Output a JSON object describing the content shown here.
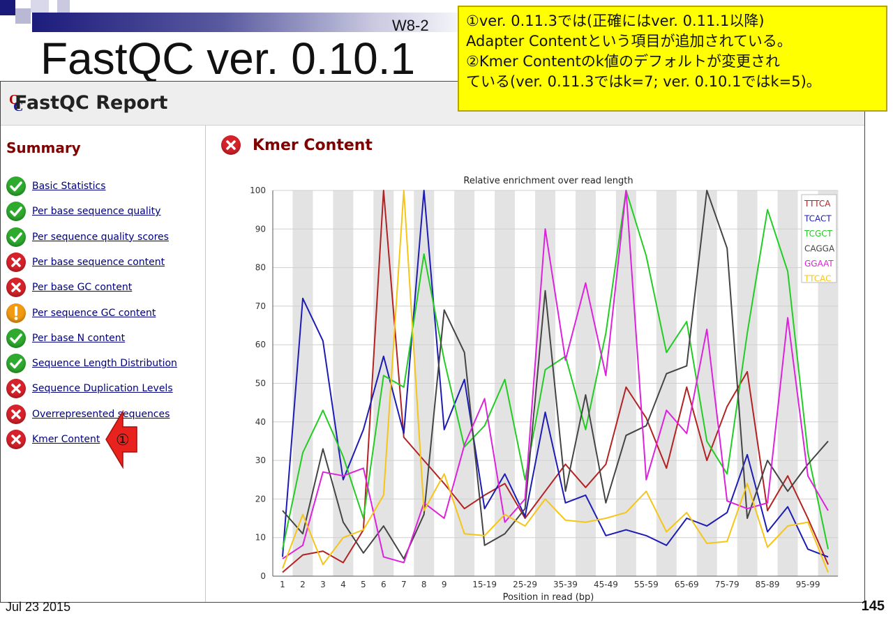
{
  "slide": {
    "title": "FastQC ver. 0.10.1",
    "tag": "W8-2",
    "date": "Jul 23 2015",
    "page_number": "145",
    "note_lines": [
      "①ver. 0.11.3では(正確にはver. 0.11.1以降)",
      "Adapter Contentという項目が追加されている。",
      "②Kmer Contentのk値のデフォルトが変更され",
      "ている(ver. 0.11.3ではk=7; ver. 0.10.1ではk=5)。"
    ],
    "arrow_label": "①",
    "colors": {
      "note_bg": "#ffff00",
      "arrow": "#e8231d"
    }
  },
  "report": {
    "title": "FastQC Report",
    "summary_heading": "Summary",
    "modules": [
      {
        "label": "Basic Statistics",
        "status": "pass"
      },
      {
        "label": "Per base sequence quality",
        "status": "pass"
      },
      {
        "label": "Per sequence quality scores",
        "status": "pass"
      },
      {
        "label": "Per base sequence content",
        "status": "fail"
      },
      {
        "label": "Per base GC content",
        "status": "fail"
      },
      {
        "label": "Per sequence GC content",
        "status": "warn"
      },
      {
        "label": "Per base N content",
        "status": "pass"
      },
      {
        "label": "Sequence Length Distribution",
        "status": "pass"
      },
      {
        "label": "Sequence Duplication Levels",
        "status": "fail"
      },
      {
        "label": "Overrepresented sequences",
        "status": "fail"
      },
      {
        "label": "Kmer Content",
        "status": "fail"
      }
    ],
    "main_heading": "Kmer Content",
    "status_colors": {
      "pass": "#2eaa2e",
      "fail": "#d6222a",
      "warn": "#f29a12"
    }
  },
  "chart_data": {
    "type": "line",
    "title": "Relative enrichment over read length",
    "xlabel": "Position in read (bp)",
    "ylabel": "",
    "ylim": [
      0,
      100
    ],
    "yticks": [
      0,
      10,
      20,
      30,
      40,
      50,
      60,
      70,
      80,
      90,
      100
    ],
    "grid": true,
    "legend_position": "top-right",
    "x": [
      "1",
      "2",
      "3",
      "4",
      "5",
      "6",
      "7",
      "8",
      "9",
      "10-14",
      "15-19",
      "20-24",
      "25-29",
      "30-34",
      "35-39",
      "40-44",
      "45-49",
      "50-54",
      "55-59",
      "60-64",
      "65-69",
      "70-74",
      "75-79",
      "80-84",
      "85-89",
      "90-94",
      "95-99",
      "100"
    ],
    "x_tick_labels": [
      "1",
      "2",
      "3",
      "4",
      "5",
      "6",
      "7",
      "8",
      "9",
      "",
      "15-19",
      "",
      "25-29",
      "",
      "35-39",
      "",
      "45-49",
      "",
      "55-59",
      "",
      "65-69",
      "",
      "75-79",
      "",
      "85-89",
      "",
      "95-99",
      ""
    ],
    "series": [
      {
        "name": "TTTCA",
        "color": "#b22222",
        "values": [
          1,
          5.5,
          6.5,
          3.5,
          12,
          100,
          36,
          30,
          24,
          17.5,
          21,
          24,
          15,
          22,
          29,
          23,
          29,
          49,
          41,
          28,
          49,
          30,
          44,
          53,
          17,
          26,
          15,
          3
        ]
      },
      {
        "name": "TCACT",
        "color": "#1c1cb4",
        "values": [
          5,
          72,
          61,
          25,
          38,
          57,
          37,
          100,
          38,
          51,
          17.5,
          26.5,
          15.5,
          42.5,
          19,
          21,
          10.5,
          12,
          10.5,
          8,
          15,
          13,
          16.5,
          31.5,
          11.5,
          18,
          7,
          5
        ]
      },
      {
        "name": "TCGCT",
        "color": "#22cc22",
        "values": [
          7,
          32,
          43,
          31,
          15,
          52,
          49,
          83.5,
          56,
          33.5,
          39,
          51,
          25,
          53.5,
          57,
          38,
          63,
          100,
          83,
          58,
          66,
          35,
          26.5,
          63,
          95,
          79,
          32,
          7
        ]
      },
      {
        "name": "CAGGA",
        "color": "#444444",
        "values": [
          17,
          11,
          33,
          14,
          6,
          13,
          4.5,
          16,
          69,
          58,
          8,
          11,
          17.5,
          74,
          22,
          47,
          19,
          36.5,
          39,
          52.5,
          54.5,
          100,
          85,
          15,
          30,
          22,
          29,
          35
        ]
      },
      {
        "name": "GGAAT",
        "color": "#dd22dd",
        "values": [
          4.5,
          8,
          27,
          26,
          28,
          5,
          3.5,
          19,
          15,
          34,
          46,
          14,
          20,
          90,
          56,
          76,
          52,
          100,
          25,
          43,
          37,
          64,
          19.5,
          17.5,
          19,
          67,
          26,
          17
        ]
      },
      {
        "name": "TTCAC",
        "color": "#f5c518",
        "values": [
          2,
          16,
          3,
          10,
          12,
          21,
          100,
          17,
          26.5,
          11,
          10.5,
          16,
          13,
          20,
          14.5,
          14,
          15,
          16.5,
          22,
          11.5,
          16.5,
          8.5,
          9,
          24,
          7.5,
          13,
          14,
          1
        ]
      }
    ]
  }
}
